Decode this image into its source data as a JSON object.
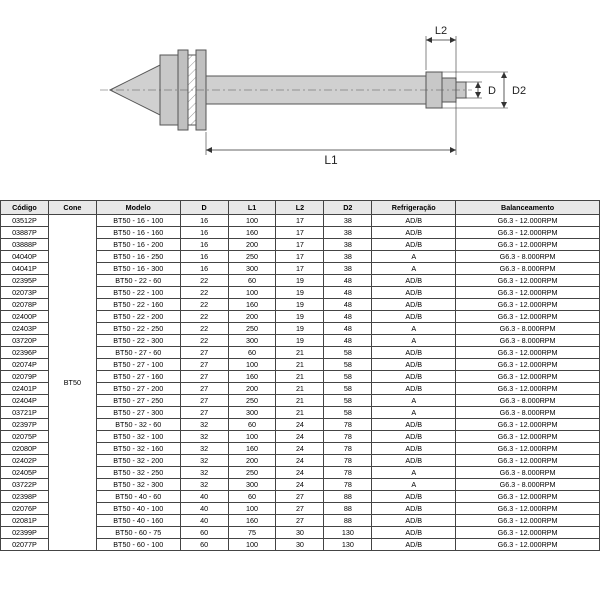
{
  "diagram": {
    "labels": {
      "L1": "L1",
      "L2": "L2",
      "D": "D",
      "D2": "D2"
    },
    "stroke": "#666666",
    "fill": "#b8b8b8",
    "hatch": "#999999"
  },
  "table": {
    "headers": [
      "Código",
      "Cone",
      "Modelo",
      "D",
      "L1",
      "L2",
      "D2",
      "Refrigeração",
      "Balanceamento"
    ],
    "cone": "BT50",
    "rows": [
      [
        "03512P",
        "BT50 - 16 - 100",
        "16",
        "100",
        "17",
        "38",
        "AD/B",
        "G6.3 - 12.000RPM"
      ],
      [
        "03887P",
        "BT50 - 16 - 160",
        "16",
        "160",
        "17",
        "38",
        "AD/B",
        "G6.3 - 12.000RPM"
      ],
      [
        "03888P",
        "BT50 - 16 - 200",
        "16",
        "200",
        "17",
        "38",
        "AD/B",
        "G6.3 - 12.000RPM"
      ],
      [
        "04040P",
        "BT50 - 16 - 250",
        "16",
        "250",
        "17",
        "38",
        "A",
        "G6.3 - 8.000RPM"
      ],
      [
        "04041P",
        "BT50 - 16 - 300",
        "16",
        "300",
        "17",
        "38",
        "A",
        "G6.3 - 8.000RPM"
      ],
      [
        "02395P",
        "BT50 - 22 - 60",
        "22",
        "60",
        "19",
        "48",
        "AD/B",
        "G6.3 - 12.000RPM"
      ],
      [
        "02073P",
        "BT50 - 22 - 100",
        "22",
        "100",
        "19",
        "48",
        "AD/B",
        "G6.3 - 12.000RPM"
      ],
      [
        "02078P",
        "BT50 - 22 - 160",
        "22",
        "160",
        "19",
        "48",
        "AD/B",
        "G6.3 - 12.000RPM"
      ],
      [
        "02400P",
        "BT50 - 22 - 200",
        "22",
        "200",
        "19",
        "48",
        "AD/B",
        "G6.3 - 12.000RPM"
      ],
      [
        "02403P",
        "BT50 - 22 - 250",
        "22",
        "250",
        "19",
        "48",
        "A",
        "G6.3 - 8.000RPM"
      ],
      [
        "03720P",
        "BT50 - 22 - 300",
        "22",
        "300",
        "19",
        "48",
        "A",
        "G6.3 - 8.000RPM"
      ],
      [
        "02396P",
        "BT50 - 27 - 60",
        "27",
        "60",
        "21",
        "58",
        "AD/B",
        "G6.3 - 12.000RPM"
      ],
      [
        "02074P",
        "BT50 - 27 - 100",
        "27",
        "100",
        "21",
        "58",
        "AD/B",
        "G6.3 - 12.000RPM"
      ],
      [
        "02079P",
        "BT50 - 27 - 160",
        "27",
        "160",
        "21",
        "58",
        "AD/B",
        "G6.3 - 12.000RPM"
      ],
      [
        "02401P",
        "BT50 - 27 - 200",
        "27",
        "200",
        "21",
        "58",
        "AD/B",
        "G6.3 - 12.000RPM"
      ],
      [
        "02404P",
        "BT50 - 27 - 250",
        "27",
        "250",
        "21",
        "58",
        "A",
        "G6.3 - 8.000RPM"
      ],
      [
        "03721P",
        "BT50 - 27 - 300",
        "27",
        "300",
        "21",
        "58",
        "A",
        "G6.3 - 8.000RPM"
      ],
      [
        "02397P",
        "BT50 - 32 - 60",
        "32",
        "60",
        "24",
        "78",
        "AD/B",
        "G6.3 - 12.000RPM"
      ],
      [
        "02075P",
        "BT50 - 32 - 100",
        "32",
        "100",
        "24",
        "78",
        "AD/B",
        "G6.3 - 12.000RPM"
      ],
      [
        "02080P",
        "BT50 - 32 - 160",
        "32",
        "160",
        "24",
        "78",
        "AD/B",
        "G6.3 - 12.000RPM"
      ],
      [
        "02402P",
        "BT50 - 32 - 200",
        "32",
        "200",
        "24",
        "78",
        "AD/B",
        "G6.3 - 12.000RPM"
      ],
      [
        "02405P",
        "BT50 - 32 - 250",
        "32",
        "250",
        "24",
        "78",
        "A",
        "G6.3 - 8.000RPM"
      ],
      [
        "03722P",
        "BT50 - 32 - 300",
        "32",
        "300",
        "24",
        "78",
        "A",
        "G6.3 - 8.000RPM"
      ],
      [
        "02398P",
        "BT50 - 40 - 60",
        "40",
        "60",
        "27",
        "88",
        "AD/B",
        "G6.3 - 12.000RPM"
      ],
      [
        "02076P",
        "BT50 - 40 - 100",
        "40",
        "100",
        "27",
        "88",
        "AD/B",
        "G6.3 - 12.000RPM"
      ],
      [
        "02081P",
        "BT50 - 40 - 160",
        "40",
        "160",
        "27",
        "88",
        "AD/B",
        "G6.3 - 12.000RPM"
      ],
      [
        "02399P",
        "BT50 - 60 - 75",
        "60",
        "75",
        "30",
        "130",
        "AD/B",
        "G6.3 - 12.000RPM"
      ],
      [
        "02077P",
        "BT50 - 60 - 100",
        "60",
        "100",
        "30",
        "130",
        "AD/B",
        "G6.3 - 12.000RPM"
      ]
    ]
  }
}
